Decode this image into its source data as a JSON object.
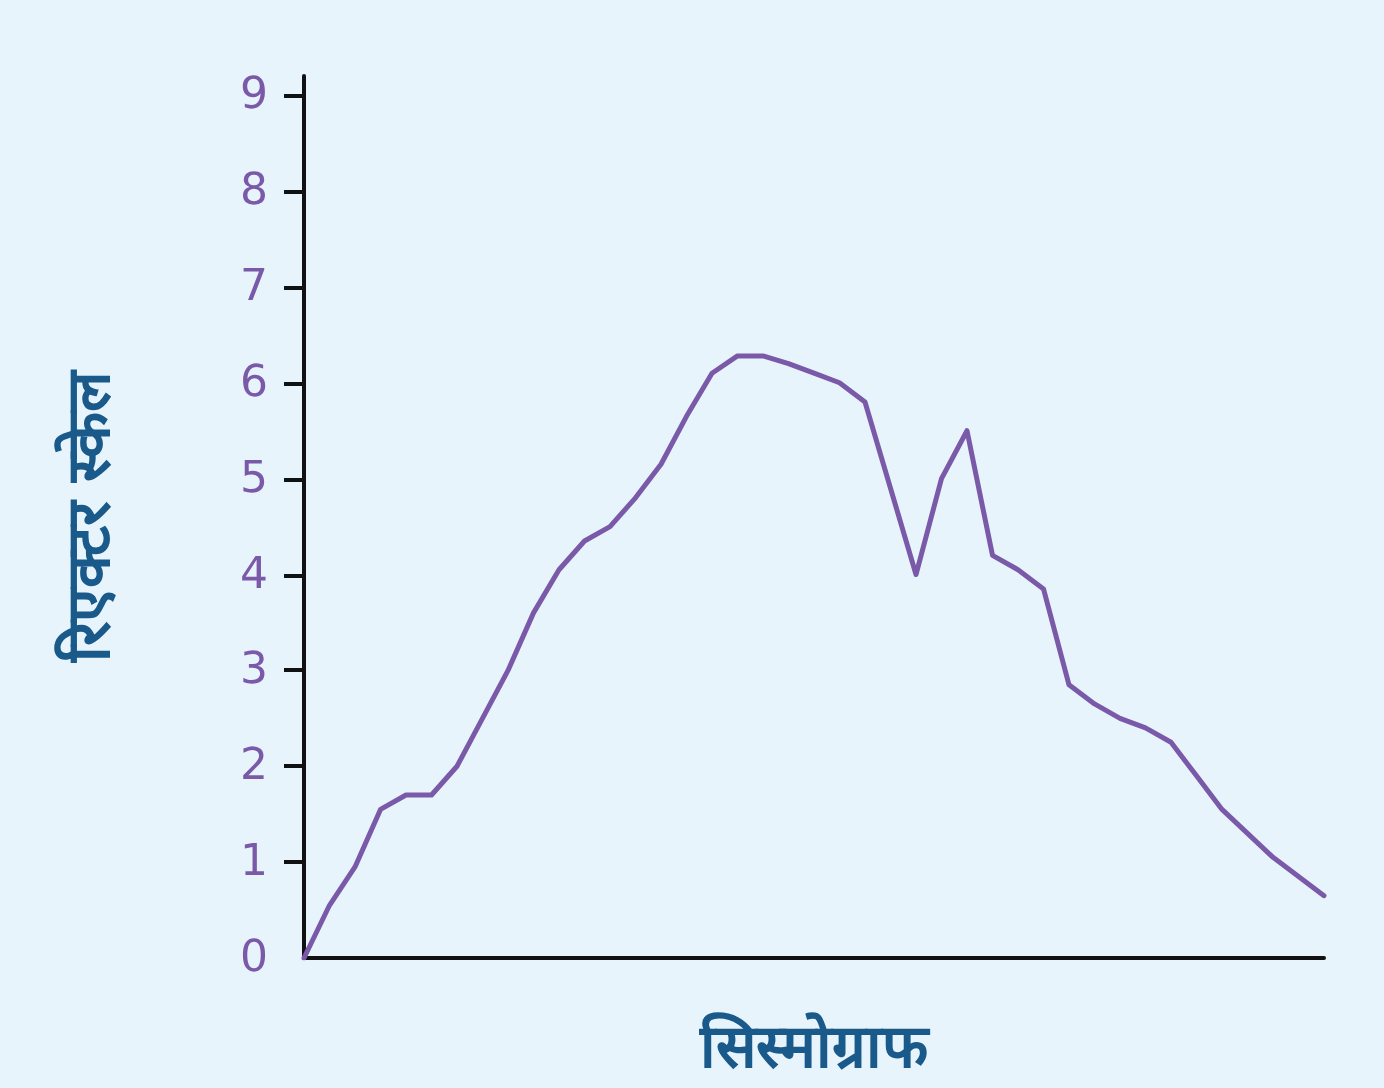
{
  "chart_data": {
    "type": "line",
    "xlabel": "सिस्मोग्राफ",
    "ylabel": "रिएक्टर स्केल",
    "categories": [
      null,
      null,
      null,
      null,
      null,
      null,
      null,
      null,
      null,
      null,
      null,
      null,
      null,
      null,
      null,
      null,
      null,
      null,
      null,
      null,
      null,
      null,
      null,
      null,
      null,
      null,
      null,
      null,
      null,
      null,
      null,
      null,
      null,
      null,
      null,
      null,
      null,
      null,
      null,
      null,
      null
    ],
    "series": [
      {
        "color": "#7a5aa8",
        "values": [
          0,
          0.55,
          0.95,
          1.55,
          1.7,
          1.7,
          2.0,
          2.5,
          3.0,
          3.6,
          4.05,
          4.35,
          4.5,
          4.8,
          5.15,
          5.65,
          6.1,
          6.28,
          6.28,
          6.2,
          6.1,
          6.0,
          5.8,
          4.9,
          4.0,
          5.0,
          5.5,
          4.2,
          4.05,
          3.85,
          2.85,
          2.65,
          2.5,
          2.4,
          2.25,
          1.9,
          1.55,
          1.3,
          1.05,
          0.85,
          0.65
        ]
      }
    ],
    "ylim": [
      0,
      9.2
    ],
    "yticks": [
      0,
      1,
      2,
      3,
      4,
      5,
      6,
      7,
      8,
      9
    ],
    "marker": "none",
    "line_style": "solid"
  }
}
